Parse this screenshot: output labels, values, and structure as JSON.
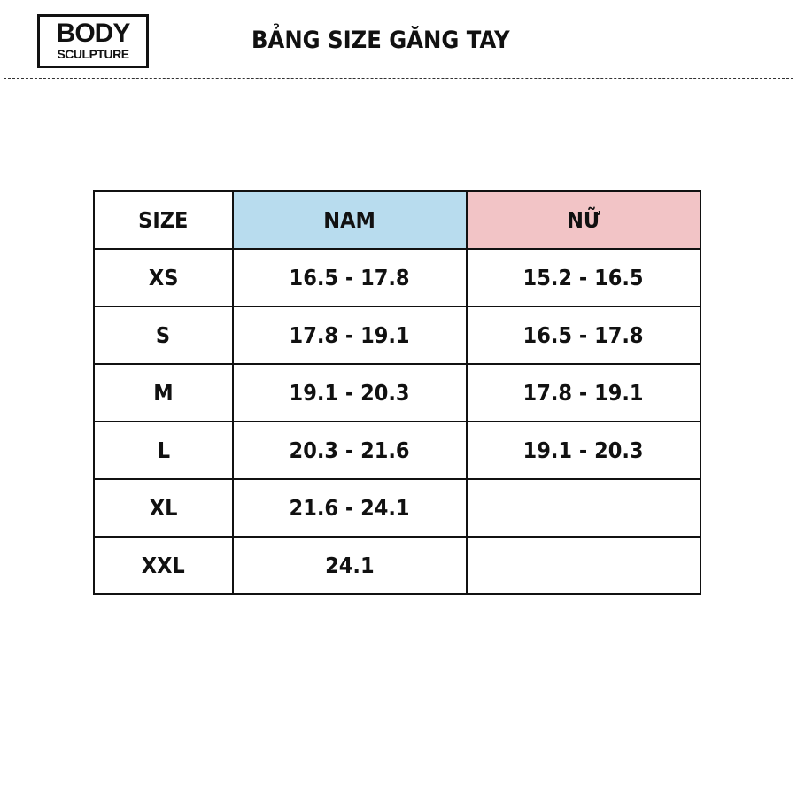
{
  "logo": {
    "line1": "BODY",
    "line2": "SCULPTURE"
  },
  "title": "BẢNG SIZE GĂNG TAY",
  "colors": {
    "nam_header": "#b8dcee",
    "nu_header": "#f2c4c6"
  },
  "table": {
    "headers": [
      "SIZE",
      "NAM",
      "NỮ"
    ],
    "rows": [
      [
        "XS",
        "16.5 - 17.8",
        "15.2 - 16.5"
      ],
      [
        "S",
        "17.8 - 19.1",
        "16.5 - 17.8"
      ],
      [
        "M",
        "19.1 - 20.3",
        "17.8 - 19.1"
      ],
      [
        "L",
        "20.3 - 21.6",
        "19.1 - 20.3"
      ],
      [
        "XL",
        "21.6 - 24.1",
        ""
      ],
      [
        "XXL",
        "24.1",
        ""
      ]
    ]
  }
}
